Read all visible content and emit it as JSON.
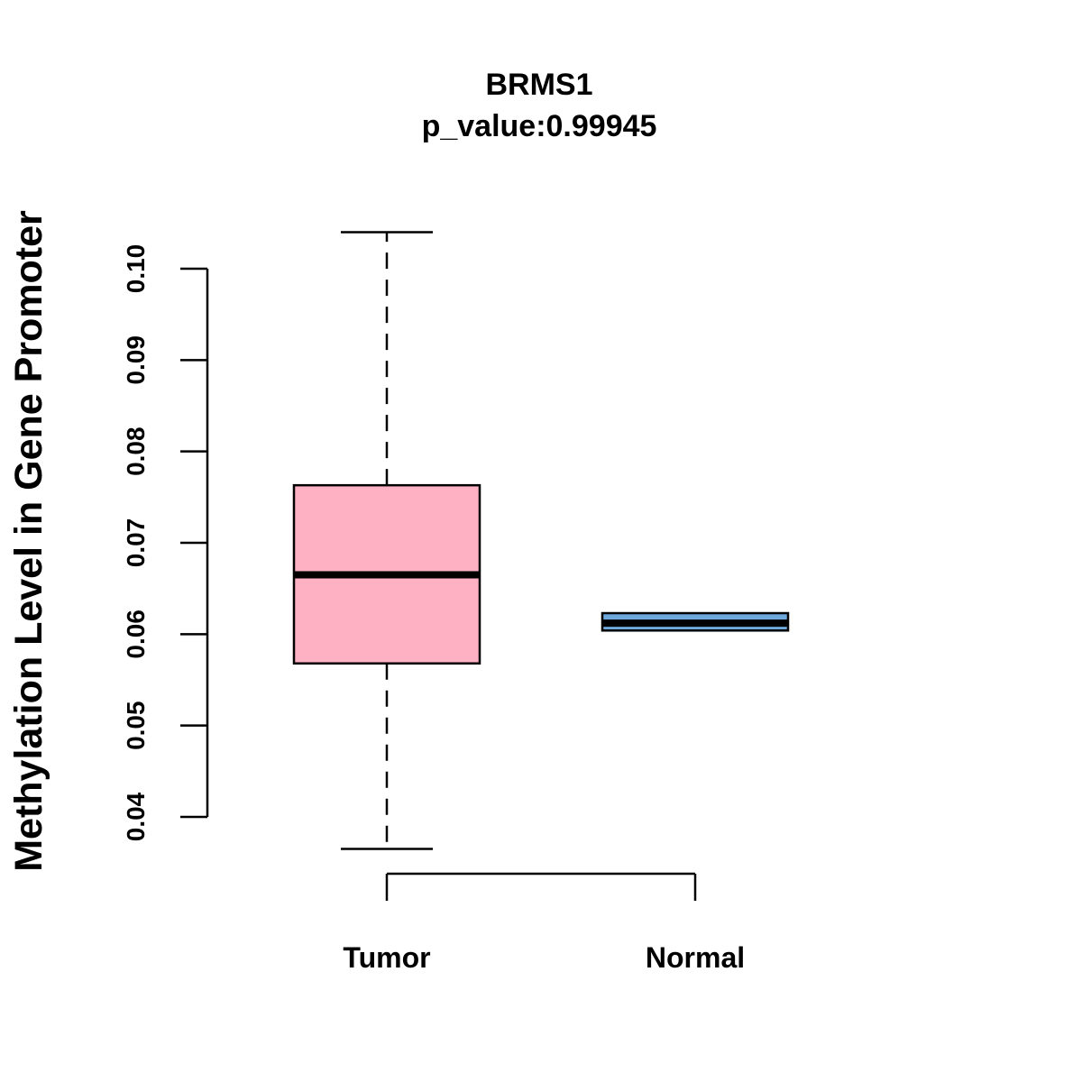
{
  "chart_data": {
    "type": "box",
    "title": "BRMS1",
    "subtitle": "p_value:0.99945",
    "ylabel": "Methylation Level in Gene Promoter",
    "xlabel": "",
    "ylim": [
      0.04,
      0.1
    ],
    "yticks": [
      "0.04",
      "0.05",
      "0.06",
      "0.07",
      "0.08",
      "0.09",
      "0.10"
    ],
    "categories": [
      "Tumor",
      "Normal"
    ],
    "boxes": [
      {
        "name": "Tumor",
        "min": 0.0365,
        "q1": 0.0568,
        "median": 0.0665,
        "q3": 0.0763,
        "max": 0.104,
        "color": "#FDB1C3"
      },
      {
        "name": "Normal",
        "min": 0.0604,
        "q1": 0.0604,
        "median": 0.0612,
        "q3": 0.0623,
        "max": 0.0623,
        "color": "#6FA8DC"
      }
    ]
  }
}
